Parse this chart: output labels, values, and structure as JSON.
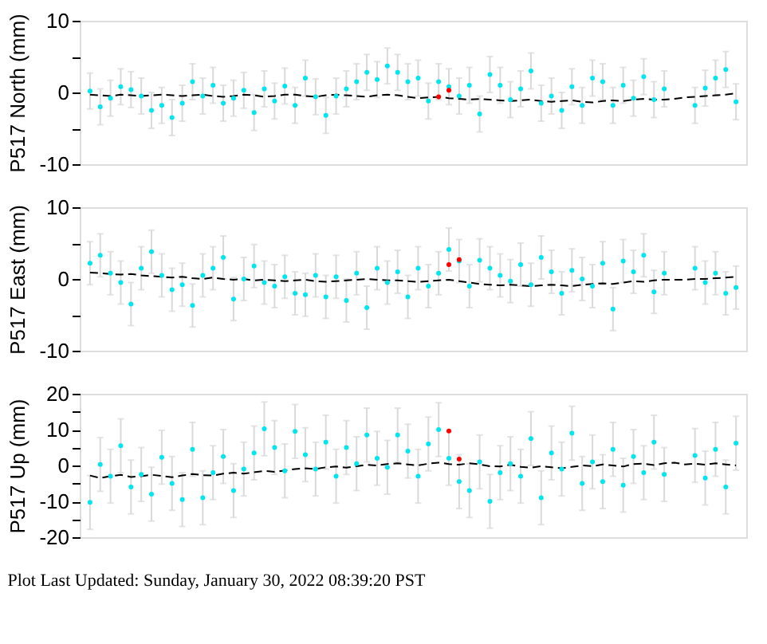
{
  "chart_data": [
    {
      "type": "scatter",
      "ylabel": "P517 North (mm)",
      "ylim": [
        -10,
        10
      ],
      "yticks": [
        -10,
        {
          "value": -5,
          "label": null
        },
        0,
        {
          "value": 5,
          "label": null
        },
        10
      ],
      "grid": false,
      "categories": [
        null,
        null,
        null,
        null,
        null,
        null,
        null,
        null,
        null,
        null,
        null,
        null,
        null,
        null,
        null,
        null,
        null,
        null,
        null,
        null,
        null,
        null,
        null,
        null,
        null,
        null,
        null,
        null,
        null,
        null,
        null,
        null,
        null,
        null,
        null,
        null,
        null,
        null,
        null,
        null,
        null,
        null,
        null,
        null,
        null,
        null,
        null,
        null,
        null,
        null,
        null,
        null,
        null,
        null,
        null,
        null,
        null,
        null,
        null,
        null,
        null,
        null,
        null,
        null
      ],
      "series": [
        {
          "color": "#00e5ee",
          "marker": "circle",
          "values": [
            0.2,
            -2.0,
            -0.8,
            0.8,
            0.4,
            -0.5,
            -2.5,
            -1.8,
            -3.5,
            -1.5,
            1.5,
            -0.5,
            1.0,
            -1.5,
            -0.8,
            0.3,
            -2.8,
            0.5,
            -1.2,
            0.9,
            -1.8,
            2.0,
            -0.6,
            -3.2,
            -0.5,
            0.5,
            1.5,
            2.8,
            1.8,
            3.7,
            2.8,
            1.5,
            2.0,
            -1.2,
            1.5,
            0.8,
            -0.5,
            1.0,
            -3.0,
            2.5,
            1.0,
            -1.0,
            0.5,
            3.0,
            -1.5,
            -0.5,
            -2.5,
            0.8,
            -1.8,
            2.0,
            1.5,
            -1.8,
            1.0,
            -0.8,
            2.2,
            -1.0,
            0.5,
            null,
            null,
            -1.8,
            0.6,
            2.0,
            3.2,
            -1.3
          ],
          "errors": [
            2.5,
            2.5,
            2.5,
            2.5,
            2.5,
            2.5,
            2.5,
            2.5,
            2.5,
            2.5,
            2.5,
            2.5,
            2.5,
            2.5,
            2.5,
            2.5,
            2.5,
            2.5,
            2.5,
            2.5,
            2.5,
            2.5,
            2.5,
            2.5,
            2.5,
            2.5,
            2.5,
            2.5,
            2.5,
            2.5,
            2.5,
            2.5,
            2.5,
            2.5,
            2.5,
            2.5,
            2.5,
            2.5,
            2.5,
            2.5,
            2.5,
            2.5,
            2.5,
            2.5,
            2.5,
            2.5,
            2.5,
            2.5,
            2.5,
            2.5,
            2.5,
            2.5,
            2.5,
            2.5,
            2.5,
            2.5,
            2.5,
            null,
            null,
            2.5,
            2.5,
            2.5,
            2.5,
            2.5
          ]
        },
        {
          "color": "#ff0000",
          "values": [
            null,
            null,
            null,
            null,
            null,
            null,
            null,
            null,
            null,
            null,
            null,
            null,
            null,
            null,
            null,
            null,
            null,
            null,
            null,
            null,
            null,
            null,
            null,
            null,
            null,
            null,
            null,
            null,
            null,
            null,
            null,
            null,
            null,
            null,
            -0.6,
            0.3,
            null,
            null,
            null,
            null,
            null,
            null,
            null,
            null,
            null,
            null,
            null,
            null,
            null,
            null,
            null,
            null,
            null,
            null,
            null,
            null,
            null,
            null,
            null,
            null,
            null,
            null,
            null,
            null
          ]
        },
        {
          "type": "line",
          "line_style": "dashed",
          "color": "#000000",
          "values": [
            -0.3,
            -0.4,
            -0.5,
            -0.3,
            -0.4,
            -0.5,
            -0.4,
            -0.3,
            -0.4,
            -0.5,
            -0.4,
            -0.3,
            -0.5,
            -0.6,
            -0.5,
            -0.3,
            -0.4,
            -0.6,
            -0.5,
            -0.3,
            -0.3,
            -0.5,
            -0.6,
            -0.4,
            -0.3,
            -0.4,
            -0.5,
            -0.6,
            -0.4,
            -0.3,
            -0.4,
            -0.6,
            -0.8,
            -0.7,
            -0.6,
            -0.8,
            -0.9,
            -1.0,
            -0.9,
            -1.0,
            -1.1,
            -1.2,
            -1.1,
            -1.0,
            -1.2,
            -1.3,
            -1.2,
            -1.1,
            -1.3,
            -1.4,
            -1.2,
            -1.1,
            -1.2,
            -1.0,
            -0.9,
            -1.0,
            -1.0,
            -0.9,
            -0.7,
            -0.6,
            -0.5,
            -0.4,
            -0.3,
            -0.1
          ]
        }
      ]
    },
    {
      "type": "scatter",
      "ylabel": "P517 East (mm)",
      "ylim": [
        -10,
        10
      ],
      "yticks": [
        -10,
        {
          "value": -5,
          "label": null
        },
        0,
        {
          "value": 5,
          "label": null
        },
        10
      ],
      "grid": false,
      "categories": [
        null,
        null,
        null,
        null,
        null,
        null,
        null,
        null,
        null,
        null,
        null,
        null,
        null,
        null,
        null,
        null,
        null,
        null,
        null,
        null,
        null,
        null,
        null,
        null,
        null,
        null,
        null,
        null,
        null,
        null,
        null,
        null,
        null,
        null,
        null,
        null,
        null,
        null,
        null,
        null,
        null,
        null,
        null,
        null,
        null,
        null,
        null,
        null,
        null,
        null,
        null,
        null,
        null,
        null,
        null,
        null,
        null,
        null,
        null,
        null,
        null,
        null,
        null,
        null
      ],
      "series": [
        {
          "color": "#00e5ee",
          "marker": "circle",
          "values": [
            2.2,
            3.3,
            0.8,
            -0.5,
            -3.5,
            1.5,
            3.8,
            0.5,
            -1.5,
            -0.8,
            -3.7,
            0.5,
            1.5,
            3.0,
            -2.8,
            0.0,
            1.8,
            -0.5,
            -1.0,
            0.3,
            -2.0,
            -2.2,
            0.5,
            -2.5,
            0.3,
            -3.0,
            0.8,
            -4.0,
            1.5,
            -0.5,
            1.0,
            -2.5,
            1.5,
            -1.0,
            0.8,
            4.1,
            2.5,
            -1.0,
            2.6,
            1.5,
            0.5,
            -0.3,
            2.0,
            -0.8,
            3.0,
            1.0,
            -2.0,
            1.2,
            0.0,
            -1.0,
            2.2,
            -4.2,
            2.5,
            1.0,
            3.3,
            -1.8,
            0.8,
            null,
            null,
            1.5,
            -0.5,
            0.8,
            -2.0,
            -1.2
          ],
          "errors": [
            3,
            3,
            3,
            3,
            3,
            3,
            3,
            3,
            3,
            3,
            3,
            3,
            3,
            3,
            3,
            3,
            3,
            3,
            3,
            3,
            3,
            3,
            3,
            3,
            3,
            3,
            3,
            3,
            3,
            3,
            3,
            3,
            3,
            3,
            3,
            3,
            3,
            3,
            3,
            3,
            3,
            3,
            3,
            3,
            3,
            3,
            3,
            3,
            3,
            3,
            3,
            3,
            3,
            3,
            3,
            3,
            3,
            null,
            null,
            3,
            3,
            3,
            3,
            3
          ]
        },
        {
          "color": "#ff0000",
          "values": [
            null,
            null,
            null,
            null,
            null,
            null,
            null,
            null,
            null,
            null,
            null,
            null,
            null,
            null,
            null,
            null,
            null,
            null,
            null,
            null,
            null,
            null,
            null,
            null,
            null,
            null,
            null,
            null,
            null,
            null,
            null,
            null,
            null,
            null,
            null,
            2.0,
            2.7,
            null,
            null,
            null,
            null,
            null,
            null,
            null,
            null,
            null,
            null,
            null,
            null,
            null,
            null,
            null,
            null,
            null,
            null,
            null,
            null,
            null,
            null,
            null,
            null,
            null,
            null,
            null
          ]
        },
        {
          "type": "line",
          "line_style": "dashed",
          "color": "#000000",
          "values": [
            0.9,
            0.8,
            0.7,
            0.6,
            0.7,
            0.5,
            0.4,
            0.3,
            0.2,
            0.3,
            0.1,
            0.0,
            0.2,
            0.0,
            -0.1,
            0.0,
            -0.2,
            -0.1,
            -0.2,
            -0.3,
            -0.2,
            -0.1,
            -0.3,
            -0.4,
            -0.3,
            -0.2,
            -0.1,
            0.0,
            -0.1,
            -0.2,
            -0.2,
            -0.3,
            -0.4,
            -0.3,
            -0.2,
            -0.1,
            -0.3,
            -0.5,
            -0.7,
            -0.8,
            -0.9,
            -0.8,
            -0.9,
            -1.0,
            -0.9,
            -0.8,
            -0.9,
            -1.0,
            -0.8,
            -0.7,
            -0.6,
            -0.7,
            -0.5,
            -0.3,
            -0.4,
            -0.2,
            -0.1,
            -0.1,
            -0.1,
            0.0,
            0.0,
            0.1,
            0.2,
            0.3
          ]
        }
      ]
    },
    {
      "type": "scatter",
      "ylabel": "P517 Up (mm)",
      "ylim": [
        -20,
        20
      ],
      "yticks": [
        -20,
        {
          "value": -15,
          "label": null
        },
        -10,
        {
          "value": -5,
          "label": null
        },
        0,
        {
          "value": 5,
          "label": null
        },
        10,
        {
          "value": 15,
          "label": null
        },
        20
      ],
      "grid": false,
      "annotations": [
        "Plot Last Updated:   Sunday, January 30, 2022 08:39:20 PST"
      ],
      "categories": [
        null,
        null,
        null,
        null,
        null,
        null,
        null,
        null,
        null,
        null,
        null,
        null,
        null,
        null,
        null,
        null,
        null,
        null,
        null,
        null,
        null,
        null,
        null,
        null,
        null,
        null,
        null,
        null,
        null,
        null,
        null,
        null,
        null,
        null,
        null,
        null,
        null,
        null,
        null,
        null,
        null,
        null,
        null,
        null,
        null,
        null,
        null,
        null,
        null,
        null,
        null,
        null,
        null,
        null,
        null,
        null,
        null,
        null,
        null,
        null,
        null,
        null,
        null,
        null
      ],
      "series": [
        {
          "color": "#00e5ee",
          "marker": "circle",
          "values": [
            -10.3,
            0.3,
            -3.0,
            5.5,
            -6.0,
            -2.5,
            -8.0,
            2.3,
            -5.0,
            -9.5,
            4.5,
            -9.0,
            -2.0,
            2.5,
            -7.0,
            -1.0,
            3.5,
            10.2,
            5.0,
            -1.5,
            9.5,
            3.0,
            -1.0,
            6.5,
            -3.0,
            5.0,
            0.5,
            8.5,
            2.0,
            -0.5,
            8.5,
            4.0,
            -3.0,
            6.0,
            10.0,
            2.0,
            -4.5,
            -7.0,
            1.0,
            -10.0,
            -2.0,
            0.5,
            -3.0,
            7.5,
            -9.0,
            3.5,
            -1.0,
            9.0,
            -5.0,
            1.0,
            -4.5,
            4.5,
            -5.5,
            2.5,
            -2.0,
            6.5,
            -2.5,
            null,
            null,
            2.8,
            -3.5,
            4.5,
            -6.0,
            6.2
          ],
          "errors": [
            7.5,
            7.5,
            7.5,
            7.5,
            7.5,
            7.5,
            7.5,
            7.5,
            7.5,
            7.5,
            7.5,
            7.5,
            7.5,
            7.5,
            7.5,
            7.5,
            7.5,
            7.5,
            7.5,
            7.5,
            7.5,
            7.5,
            7.5,
            7.5,
            7.5,
            7.5,
            7.5,
            7.5,
            7.5,
            7.5,
            7.5,
            7.5,
            7.5,
            7.5,
            7.5,
            7.5,
            7.5,
            7.5,
            7.5,
            7.5,
            7.5,
            7.5,
            7.5,
            7.5,
            7.5,
            7.5,
            7.5,
            7.5,
            7.5,
            7.5,
            7.5,
            7.5,
            7.5,
            7.5,
            7.5,
            7.5,
            7.5,
            null,
            null,
            7.5,
            7.5,
            7.5,
            7.5,
            7.5
          ]
        },
        {
          "color": "#ff0000",
          "values": [
            null,
            null,
            null,
            null,
            null,
            null,
            null,
            null,
            null,
            null,
            null,
            null,
            null,
            null,
            null,
            null,
            null,
            null,
            null,
            null,
            null,
            null,
            null,
            null,
            null,
            null,
            null,
            null,
            null,
            null,
            null,
            null,
            null,
            null,
            null,
            9.6,
            1.8,
            null,
            null,
            null,
            null,
            null,
            null,
            null,
            null,
            null,
            null,
            null,
            null,
            null,
            null,
            null,
            null,
            null,
            null,
            null,
            null,
            null,
            null,
            null,
            null,
            null,
            null,
            null
          ]
        },
        {
          "type": "line",
          "line_style": "dashed",
          "color": "#000000",
          "values": [
            -2.8,
            -3.5,
            -3.0,
            -2.6,
            -3.2,
            -3.0,
            -2.6,
            -2.9,
            -3.3,
            -2.8,
            -2.4,
            -2.7,
            -2.8,
            -2.3,
            -2.0,
            -2.3,
            -1.9,
            -1.5,
            -1.8,
            -1.4,
            -1.0,
            -0.8,
            -1.0,
            -0.5,
            -0.3,
            -0.6,
            -0.2,
            0.2,
            0.0,
            0.4,
            0.6,
            0.3,
            0.0,
            0.5,
            0.8,
            0.4,
            0.2,
            0.6,
            0.3,
            -0.2,
            -0.3,
            0.2,
            -0.4,
            -0.6,
            -0.2,
            -0.5,
            -0.8,
            -0.4,
            0.0,
            -0.2,
            0.3,
            0.0,
            -0.3,
            0.4,
            0.5,
            0.1,
            0.6,
            0.8,
            0.3,
            0.5,
            0.2,
            0.6,
            0.3,
            0.0
          ]
        }
      ]
    }
  ]
}
